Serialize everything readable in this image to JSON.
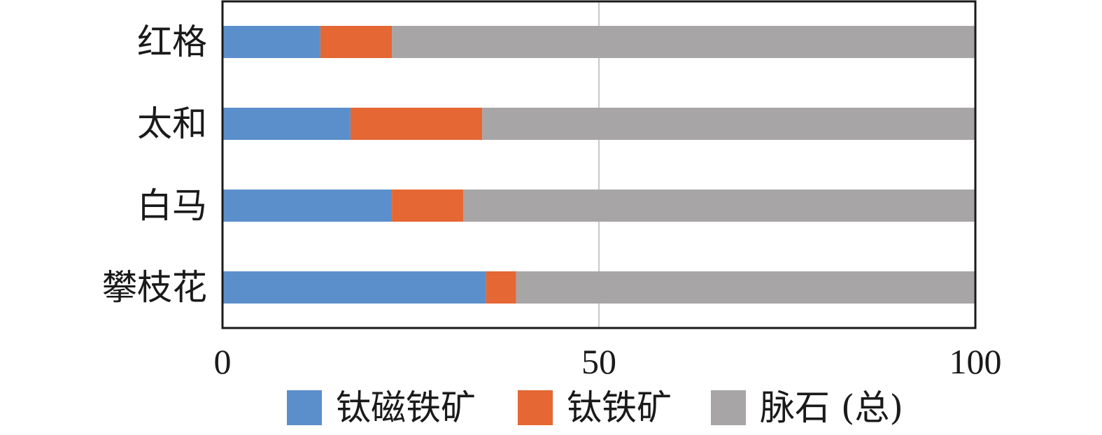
{
  "chart_data": {
    "type": "bar",
    "orientation": "horizontal",
    "stacked": true,
    "title": "",
    "xlabel": "",
    "ylabel": "",
    "categories": [
      "红格",
      "太和",
      "白马",
      "攀枝花"
    ],
    "series": [
      {
        "name": "钛磁铁矿",
        "color": "#5b8fcb",
        "values": [
          13,
          17,
          22.5,
          35
        ]
      },
      {
        "name": "钛铁矿",
        "color": "#e46734",
        "values": [
          9.5,
          17.5,
          9.5,
          4
        ]
      },
      {
        "name": "脉石 (总)",
        "color": "#a7a5a6",
        "values": [
          77.5,
          65.5,
          68,
          61
        ]
      }
    ],
    "xlim": [
      0,
      100
    ],
    "xticks": [
      "0",
      "50",
      "100"
    ],
    "gridlines": [
      50
    ],
    "grid": true,
    "legend": "bottom-center"
  }
}
